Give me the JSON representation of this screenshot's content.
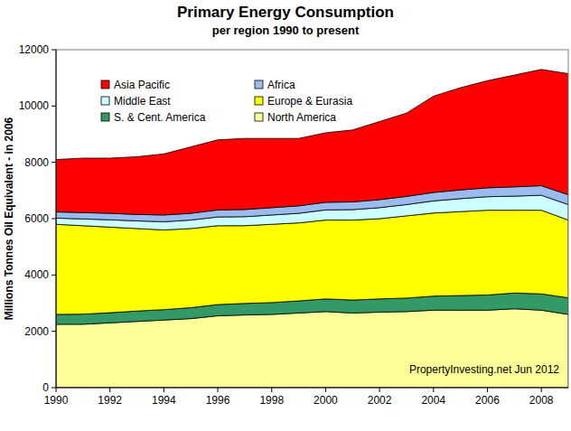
{
  "chart_data": {
    "type": "area",
    "title": "Primary Energy Consumption",
    "subtitle": "per region 1990 to present",
    "y_label": "Millions Tonnes Oil Equivalent - in 2006",
    "annotation": "PropertyInvesting.net Jun 2012",
    "stacked": true,
    "grid": false,
    "legend": "top-left",
    "x": [
      1990,
      1991,
      1992,
      1993,
      1994,
      1995,
      1996,
      1997,
      1998,
      1999,
      2000,
      2001,
      2002,
      2003,
      2004,
      2005,
      2006,
      2007,
      2008,
      2009
    ],
    "xlim": [
      1990,
      2009
    ],
    "xticks": [
      1990,
      1992,
      1994,
      1996,
      1998,
      2000,
      2002,
      2004,
      2006,
      2008
    ],
    "ylim": [
      0,
      12000
    ],
    "yticks": [
      0,
      2000,
      4000,
      6000,
      8000,
      10000,
      12000
    ],
    "series": [
      {
        "name": "North America",
        "color": "#ffff99",
        "values": [
          2250,
          2250,
          2300,
          2350,
          2400,
          2450,
          2550,
          2580,
          2600,
          2650,
          2700,
          2650,
          2680,
          2700,
          2750,
          2750,
          2750,
          2800,
          2750,
          2600
        ]
      },
      {
        "name": "S. & Cent. America",
        "color": "#339966",
        "values": [
          350,
          360,
          360,
          370,
          370,
          390,
          400,
          410,
          420,
          430,
          450,
          460,
          470,
          480,
          500,
          520,
          540,
          560,
          580,
          590
        ]
      },
      {
        "name": "Europe & Eurasia",
        "color": "#ffff00",
        "values": [
          3200,
          3140,
          3040,
          2930,
          2830,
          2810,
          2800,
          2760,
          2780,
          2770,
          2800,
          2840,
          2850,
          2920,
          2950,
          2980,
          3010,
          2940,
          2970,
          2760
        ]
      },
      {
        "name": "Middle East",
        "color": "#ccffff",
        "values": [
          220,
          240,
          260,
          270,
          290,
          300,
          310,
          320,
          330,
          340,
          360,
          370,
          390,
          400,
          430,
          460,
          480,
          500,
          530,
          550
        ]
      },
      {
        "name": "Africa",
        "color": "#99bbee",
        "values": [
          220,
          225,
          230,
          230,
          240,
          240,
          250,
          255,
          260,
          265,
          270,
          275,
          285,
          290,
          300,
          310,
          315,
          330,
          340,
          350
        ]
      },
      {
        "name": "Asia Pacific",
        "color": "#ff0000",
        "values": [
          1860,
          1935,
          1960,
          2050,
          2170,
          2360,
          2490,
          2525,
          2460,
          2395,
          2470,
          2555,
          2775,
          2960,
          3420,
          3630,
          3805,
          3970,
          4130,
          4300
        ]
      }
    ]
  }
}
